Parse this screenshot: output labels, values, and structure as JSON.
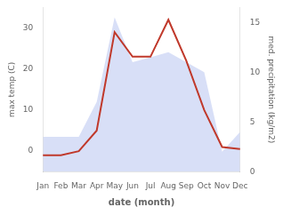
{
  "chart_data": {
    "type": "line",
    "xlabel": "date (month)",
    "ylabel": "max temp (C)",
    "y2label": "med. precipitation (kg/m2)",
    "categories": [
      "Jan",
      "Feb",
      "Mar",
      "Apr",
      "May",
      "Jun",
      "Jul",
      "Aug",
      "Sep",
      "Oct",
      "Nov",
      "Dec"
    ],
    "series": [
      {
        "type": "line",
        "color": "#c0392b",
        "values": [
          -1.0,
          -1.0,
          0.0,
          5.0,
          29.0,
          23.0,
          23.0,
          32.0,
          22.0,
          10.0,
          1.0,
          0.5
        ]
      },
      {
        "type": "area",
        "axis": "y2",
        "color": "#b8c4f0",
        "values": [
          3.5,
          3.5,
          3.5,
          7.0,
          15.5,
          11.0,
          11.5,
          12.0,
          11.0,
          10.0,
          2.0,
          4.0
        ]
      }
    ],
    "ylim": [
      -5,
      35
    ],
    "yticks": [
      0,
      10,
      20,
      30
    ],
    "y2lim": [
      0,
      16.5
    ],
    "y2ticks": [
      0,
      5,
      10,
      15
    ],
    "grid": false
  }
}
